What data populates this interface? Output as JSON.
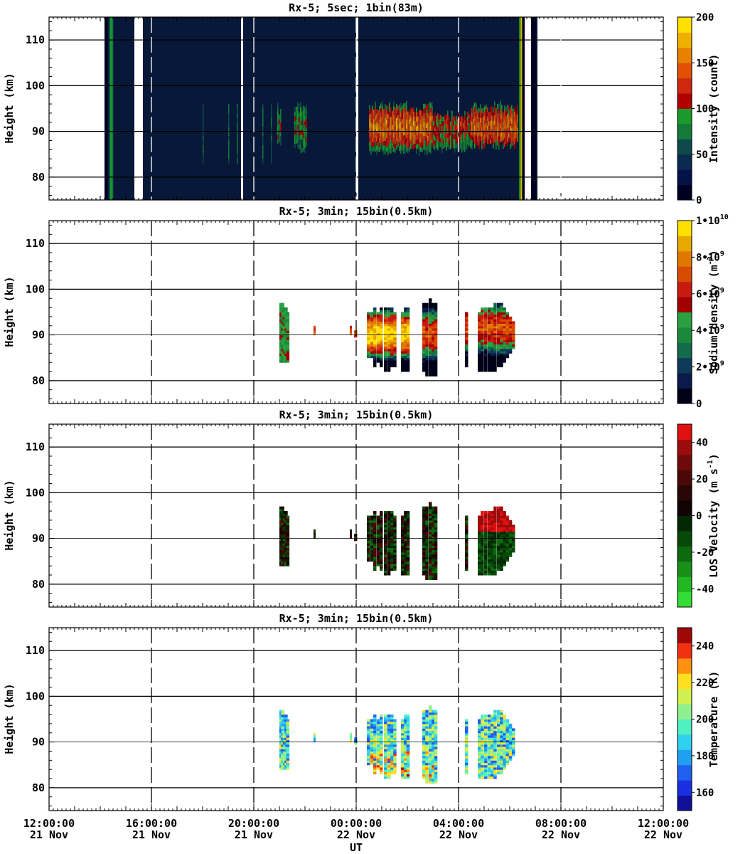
{
  "chart_data": [
    {
      "type": "heatmap",
      "title": "Rx-5;  5sec; 1bin(83m)",
      "ylabel": "Height (km)",
      "ylim": [
        75,
        115
      ],
      "yticks": [
        "80",
        "90",
        "100",
        "110"
      ],
      "xlim": [
        "12:00:00 21 Nov",
        "12:00:00 22 Nov"
      ],
      "colorbar": {
        "label": "Intensity (count)",
        "range": [
          0,
          200
        ],
        "ticks": [
          "0",
          "50",
          "100",
          "150",
          "200"
        ],
        "colors": [
          "#000022",
          "#05124a",
          "#0a2a52",
          "#0e4a4a",
          "#137a3a",
          "#1a9a2a",
          "#b00000",
          "#d02810",
          "#e05000",
          "#e88000",
          "#f0b000",
          "#ffe000"
        ]
      },
      "data_columns": [
        {
          "x0": "14:10",
          "x1": "15:20",
          "ymin": 75,
          "ymax": 115,
          "level": "background"
        },
        {
          "x0": "15:40",
          "x1": "19:30",
          "ymin": 75,
          "ymax": 115,
          "level": "background"
        },
        {
          "x0": "19:35",
          "x1": "00:00",
          "ymin": 75,
          "ymax": 115,
          "level": "background"
        },
        {
          "x0": "00:05",
          "x1": "06:35",
          "ymin": 75,
          "ymax": 115,
          "level": "background"
        },
        {
          "x0": "06:50",
          "x1": "07:05",
          "ymin": 75,
          "ymax": 115,
          "level": "background"
        }
      ],
      "layer": {
        "x0": "20:30",
        "x1": "06:25",
        "peak_km": 90,
        "max": 200
      }
    },
    {
      "type": "heatmap",
      "title": "Rx-5; 3min; 15bin(0.5km)",
      "ylabel": "Height (km)",
      "ylim": [
        75,
        115
      ],
      "yticks": [
        "80",
        "90",
        "100",
        "110"
      ],
      "colorbar": {
        "label": "Sodium density (m-3)",
        "label_unit": "m",
        "label_exp": "-3",
        "range": [
          0,
          10000000000.0
        ],
        "ticks": [
          "0",
          "2•10",
          "4•10",
          "6•10",
          "8•10",
          "1•10"
        ],
        "tick_exps": [
          "",
          "9",
          "9",
          "9",
          "9",
          "10"
        ],
        "colors": [
          "#000018",
          "#0a1a4a",
          "#0e3a5a",
          "#146a4a",
          "#1a8a3a",
          "#2aa040",
          "#a00000",
          "#c81a10",
          "#d84a00",
          "#e07800",
          "#e8a800",
          "#ffe000"
        ]
      }
    },
    {
      "type": "heatmap",
      "title": "Rx-5; 3min; 15bin(0.5km)",
      "ylabel": "Height (km)",
      "ylim": [
        75,
        115
      ],
      "yticks": [
        "80",
        "90",
        "100",
        "110"
      ],
      "colorbar": {
        "label": "LOS Velocity (m s-1)",
        "label_unit": "m s",
        "label_exp": "-1",
        "range": [
          -50,
          50
        ],
        "ticks": [
          "-40",
          "-20",
          "0",
          "20",
          "40"
        ],
        "colors": [
          "#33dd33",
          "#22b822",
          "#189018",
          "#0e6a0e",
          "#084808",
          "#042804",
          "#100404",
          "#2a0606",
          "#4a0808",
          "#700a0a",
          "#9c0c0c",
          "#e01010"
        ]
      }
    },
    {
      "type": "heatmap",
      "title": "Rx-5; 3min; 15bin(0.5km)",
      "ylabel": "Height (km)",
      "ylim": [
        75,
        115
      ],
      "yticks": [
        "80",
        "90",
        "100",
        "110"
      ],
      "xlabel": "UT",
      "xticks": [
        {
          "time": "12:00:00",
          "date": "21 Nov"
        },
        {
          "time": "16:00:00",
          "date": "21 Nov"
        },
        {
          "time": "20:00:00",
          "date": "21 Nov"
        },
        {
          "time": "00:00:00",
          "date": "22 Nov"
        },
        {
          "time": "04:00:00",
          "date": "22 Nov"
        },
        {
          "time": "08:00:00",
          "date": "22 Nov"
        },
        {
          "time": "12:00:00",
          "date": "22 Nov"
        }
      ],
      "colorbar": {
        "label": "Temperature (K)",
        "range": [
          150,
          250
        ],
        "ticks": [
          "160",
          "180",
          "200",
          "220",
          "240"
        ],
        "colors": [
          "#10109a",
          "#1a30e0",
          "#2060f0",
          "#20a0f0",
          "#30d0f0",
          "#50f0c0",
          "#90f090",
          "#d0f050",
          "#ffe020",
          "#ff9010",
          "#f03010",
          "#a00808"
        ]
      }
    }
  ]
}
